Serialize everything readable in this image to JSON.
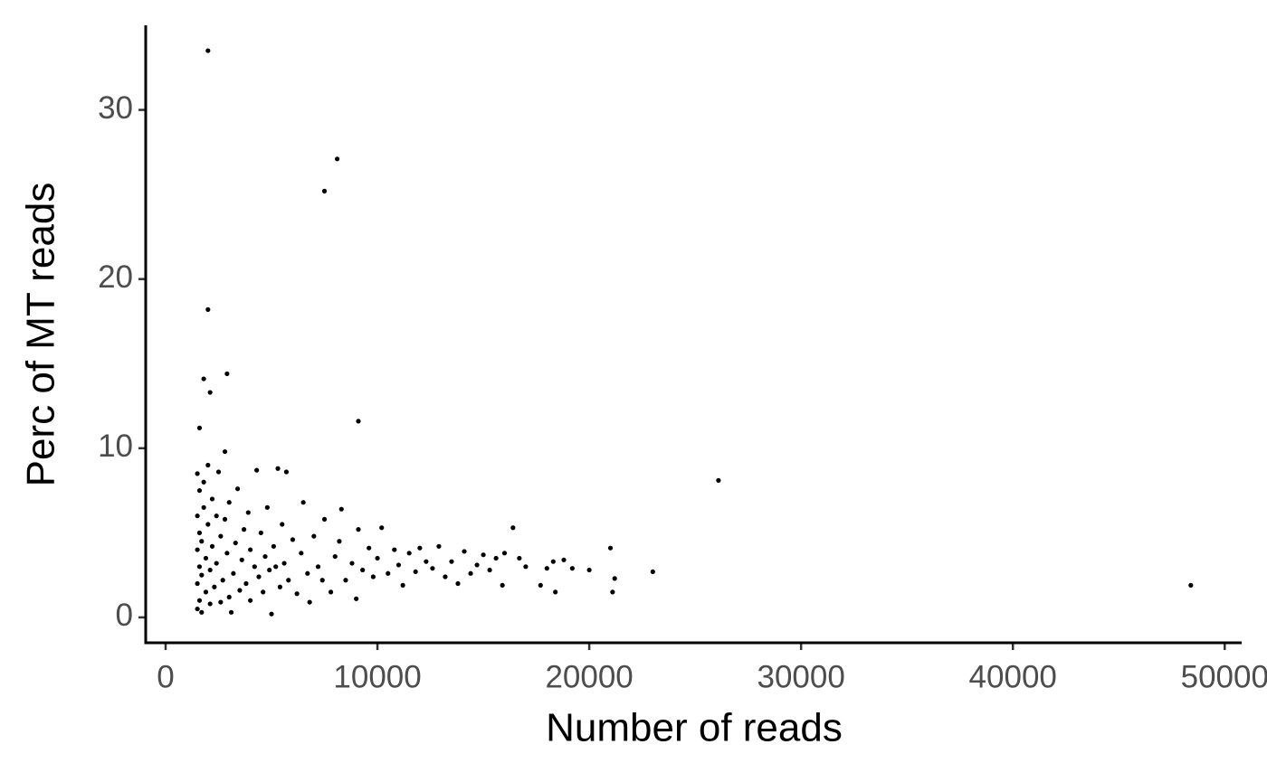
{
  "chart_data": {
    "type": "scatter",
    "x_label": "Number of reads",
    "y_label": "Perc of MT reads",
    "color": "#000000",
    "xlim": [
      -940,
      50800
    ],
    "ylim": [
      -1.5,
      35
    ],
    "xticks": [
      0,
      10000,
      20000,
      30000,
      40000,
      50000
    ],
    "yticks": [
      0,
      10,
      20,
      30
    ],
    "x": [
      2000,
      8100,
      7500,
      2000,
      1800,
      2100,
      2900,
      9100,
      26100,
      48400,
      1600,
      23000,
      21000,
      21100,
      21200,
      16400,
      18400,
      20000,
      17700,
      15900,
      1500,
      1500,
      1500,
      1500,
      1500,
      1600,
      1600,
      1600,
      1600,
      1700,
      1700,
      1700,
      1800,
      1800,
      1900,
      1900,
      2000,
      2000,
      2100,
      2100,
      2200,
      2200,
      2300,
      2400,
      2400,
      2500,
      2600,
      2600,
      2700,
      2800,
      2800,
      2900,
      3000,
      3000,
      3100,
      3200,
      3300,
      3400,
      3500,
      3600,
      3700,
      3800,
      3900,
      4000,
      4000,
      4200,
      4300,
      4400,
      4500,
      4600,
      4700,
      4800,
      4900,
      5000,
      5100,
      5200,
      5300,
      5400,
      5500,
      5600,
      5700,
      5800,
      6000,
      6200,
      6400,
      6500,
      6700,
      6800,
      7000,
      7200,
      7400,
      7500,
      7800,
      8000,
      8200,
      8300,
      8500,
      8800,
      9000,
      9100,
      9300,
      9600,
      9800,
      10000,
      10200,
      10500,
      10800,
      11000,
      11200,
      11500,
      11800,
      12000,
      12300,
      12600,
      12900,
      13200,
      13500,
      13800,
      14100,
      14400,
      14700,
      15000,
      15300,
      15600,
      16000,
      16700,
      17000,
      18000,
      18300,
      18800,
      19200
    ],
    "y": [
      33.5,
      27.1,
      25.2,
      18.2,
      14.1,
      13.3,
      14.4,
      11.6,
      8.1,
      1.9,
      11.2,
      2.7,
      4.1,
      1.5,
      2.3,
      5.3,
      1.5,
      2.8,
      1.9,
      1.9,
      0.5,
      2,
      4,
      6,
      8.5,
      1,
      3,
      5,
      7.5,
      0.3,
      2.5,
      4.5,
      6.5,
      8,
      1.5,
      3.5,
      5.5,
      9,
      0.8,
      2.8,
      4.2,
      7,
      1.8,
      3.2,
      6,
      8.6,
      0.9,
      4.8,
      2.2,
      5.8,
      9.8,
      3.8,
      1.2,
      6.8,
      0.3,
      2.6,
      4.4,
      7.6,
      1.6,
      3.4,
      5.2,
      2,
      6.2,
      1,
      4,
      3,
      8.7,
      2.4,
      5,
      1.5,
      3.6,
      6.5,
      2.8,
      0.2,
      4.2,
      3,
      8.8,
      1.8,
      5.5,
      3.2,
      8.6,
      2.2,
      4.6,
      1.4,
      3.8,
      6.8,
      2.6,
      0.9,
      4.8,
      3,
      2.2,
      5.8,
      1.5,
      3.6,
      4.5,
      6.4,
      2.2,
      3.2,
      1.1,
      5.2,
      2.8,
      4.1,
      2.4,
      3.5,
      5.3,
      2.6,
      4,
      3.1,
      1.9,
      3.8,
      2.7,
      4.1,
      3.3,
      2.9,
      4.2,
      2.4,
      3.3,
      2,
      3.9,
      2.6,
      3.1,
      3.7,
      2.8,
      3.5,
      3.8,
      3.5,
      3,
      2.9,
      3.3,
      3.4,
      2.9
    ]
  }
}
